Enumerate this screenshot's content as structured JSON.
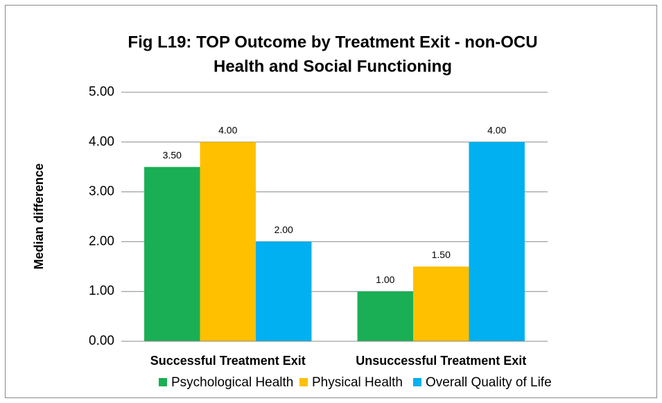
{
  "chart_data": {
    "type": "bar",
    "title": [
      "Fig L19: TOP Outcome by Treatment Exit - non-OCU",
      "Health and Social Functioning"
    ],
    "y_label": "Median difference",
    "categories": [
      "Successful Treatment Exit",
      "Unsuccessful Treatment Exit"
    ],
    "series": [
      {
        "name": "Psychological Health",
        "color": "#1aaf54",
        "values": [
          3.5,
          1
        ],
        "value_labels": [
          "3.50",
          "1.00"
        ]
      },
      {
        "name": "Physical Health",
        "color": "#ffc000",
        "values": [
          4,
          1.5
        ],
        "value_labels": [
          "4.00",
          "1.50"
        ]
      },
      {
        "name": "Overall Quality of Life",
        "color": "#00b0f0",
        "values": [
          2,
          4
        ],
        "value_labels": [
          "2.00",
          "4.00"
        ]
      }
    ],
    "ylim": [
      0,
      5
    ],
    "yticks": [
      {
        "value": 0,
        "label": "0.00"
      },
      {
        "value": 1,
        "label": "1.00"
      },
      {
        "value": 2,
        "label": "2.00"
      },
      {
        "value": 3,
        "label": "3.00"
      },
      {
        "value": 4,
        "label": "4.00"
      },
      {
        "value": 5,
        "label": "5.00"
      }
    ],
    "grid": true,
    "legend": "bottom"
  }
}
